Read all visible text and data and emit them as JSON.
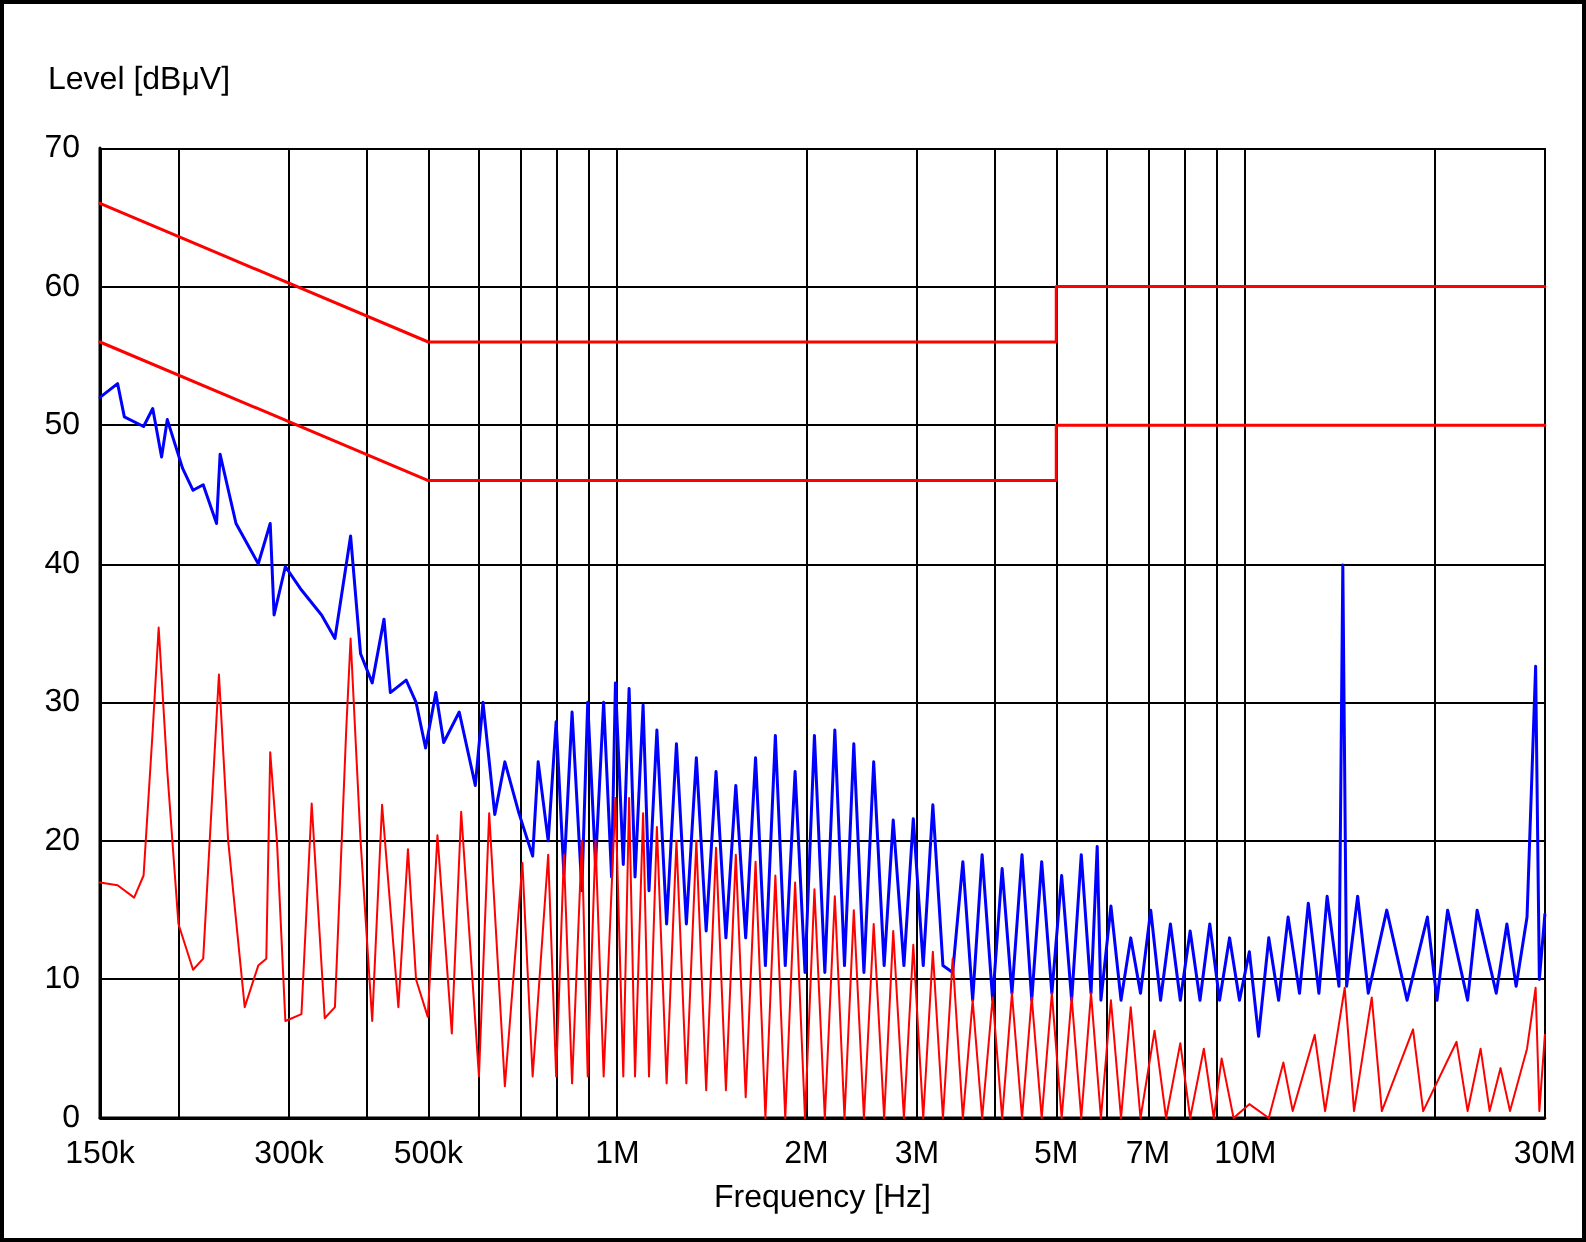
{
  "chart_data": {
    "type": "line",
    "xlabel": "Frequency [Hz]",
    "ylabel": "Level [dBμV]",
    "log": "x",
    "grid": true,
    "marker": "none",
    "line_style": "solid",
    "xlim": [
      150000,
      30000000
    ],
    "ylim": [
      0,
      70
    ],
    "xticks": [
      {
        "value": 150000,
        "label": "150k"
      },
      {
        "value": 200000,
        "label": null
      },
      {
        "value": 300000,
        "label": "300k"
      },
      {
        "value": 400000,
        "label": null
      },
      {
        "value": 500000,
        "label": "500k"
      },
      {
        "value": 600000,
        "label": null
      },
      {
        "value": 700000,
        "label": null
      },
      {
        "value": 800000,
        "label": null
      },
      {
        "value": 900000,
        "label": null
      },
      {
        "value": 1000000,
        "label": "1M"
      },
      {
        "value": 2000000,
        "label": "2M"
      },
      {
        "value": 3000000,
        "label": "3M"
      },
      {
        "value": 4000000,
        "label": null
      },
      {
        "value": 5000000,
        "label": "5M"
      },
      {
        "value": 6000000,
        "label": null
      },
      {
        "value": 7000000,
        "label": "7M"
      },
      {
        "value": 8000000,
        "label": null
      },
      {
        "value": 9000000,
        "label": null
      },
      {
        "value": 10000000,
        "label": "10M"
      },
      {
        "value": 20000000,
        "label": null
      },
      {
        "value": 30000000,
        "label": "30M"
      }
    ],
    "yticks": [
      0,
      10,
      20,
      30,
      40,
      50,
      60,
      70
    ],
    "series": [
      {
        "color": "#ff0000",
        "x": [
          150000,
          500000,
          5000000,
          5000000,
          30000000
        ],
        "values": [
          66,
          56,
          56,
          60,
          60
        ]
      },
      {
        "color": "#ff0000",
        "x": [
          150000,
          500000,
          5000000,
          5000000,
          30000000
        ],
        "values": [
          56,
          46,
          46,
          50,
          50
        ]
      },
      {
        "color": "#0000ff",
        "x": [
          150000,
          160000,
          164000,
          176000,
          182000,
          188000,
          192000,
          203000,
          211000,
          219000,
          230000,
          233000,
          247000,
          268000,
          280000,
          284000,
          296000,
          314000,
          338000,
          355000,
          376000,
          390000,
          407000,
          425000,
          435000,
          461000,
          478000,
          495000,
          514000,
          529000,
          560000,
          594000,
          611000,
          638000,
          662000,
          697000,
          733000,
          748000,
          776000,
          799000,
          822000,
          847000,
          878000,
          897000,
          923000,
          951000,
          979000,
          993000,
          1022000,
          1044000,
          1067000,
          1099000,
          1123000,
          1156000,
          1198000,
          1242000,
          1288000,
          1336000,
          1385000,
          1436000,
          1489000,
          1544000,
          1601000,
          1660000,
          1721000,
          1785000,
          1851000,
          1919000,
          1990000,
          2060000,
          2140000,
          2220000,
          2300000,
          2380000,
          2470000,
          2560000,
          2660000,
          2750000,
          2860000,
          2960000,
          3070000,
          3180000,
          3300000,
          3420000,
          3550000,
          3680000,
          3810000,
          3960000,
          4100000,
          4250000,
          4410000,
          4570000,
          4740000,
          4920000,
          5100000,
          5290000,
          5480000,
          5680000,
          5810000,
          5890000,
          6110000,
          6340000,
          6570000,
          6810000,
          7070000,
          7330000,
          7600000,
          7880000,
          8170000,
          8470000,
          8780000,
          9100000,
          9440000,
          9790000,
          10150000,
          10500000,
          10900000,
          11300000,
          11700000,
          12200000,
          12600000,
          13100000,
          13500000,
          14100000,
          14300000,
          14500000,
          15100000,
          15700000,
          16800000,
          18100000,
          19500000,
          20200000,
          21000000,
          22600000,
          23400000,
          25100000,
          26100000,
          27000000,
          28100000,
          29000000,
          29400000,
          30000000
        ],
        "values": [
          52,
          53,
          50.6,
          49.9,
          51.2,
          47.7,
          50.4,
          46.9,
          45.3,
          45.7,
          42.9,
          47.9,
          42.9,
          40,
          42.9,
          36.3,
          39.8,
          38.1,
          36.3,
          34.6,
          42,
          33.5,
          31.4,
          36,
          30.7,
          31.6,
          30,
          26.7,
          30.7,
          27.1,
          29.3,
          24,
          30,
          21.9,
          25.7,
          22,
          18.9,
          25.7,
          20,
          28.6,
          17.6,
          29.3,
          16.4,
          30,
          18.3,
          30,
          17.4,
          31.4,
          18.3,
          31,
          17.4,
          29.8,
          16.4,
          28,
          14,
          27,
          14,
          26,
          13.5,
          25,
          13,
          24,
          13,
          26,
          11,
          27.6,
          11,
          25,
          10.5,
          27.6,
          10.5,
          28,
          11,
          27,
          10.5,
          25.7,
          11,
          21.5,
          11,
          21.6,
          11,
          22.6,
          11,
          10.5,
          18.5,
          8.5,
          19,
          8.5,
          18,
          9,
          19,
          8.5,
          18.5,
          9,
          17.5,
          8.5,
          19,
          9,
          19.6,
          8.5,
          15.3,
          8.5,
          13,
          9,
          15,
          8.5,
          14,
          8.5,
          13.5,
          8.5,
          14,
          8.5,
          13,
          8.5,
          12,
          5.9,
          13,
          8.5,
          14.5,
          9,
          15.5,
          9,
          16,
          9.5,
          39.9,
          9.5,
          16,
          9,
          15,
          8.5,
          14.5,
          8.5,
          15,
          8.5,
          15,
          9,
          14,
          9.5,
          14.5,
          32.6,
          10,
          14.7
        ]
      },
      {
        "color": "#ff0000",
        "x": [
          150000,
          160000,
          170000,
          176000,
          182000,
          186000,
          192000,
          200000,
          211000,
          219000,
          232000,
          240000,
          255000,
          268000,
          276000,
          280000,
          287000,
          296000,
          314000,
          326000,
          342000,
          355000,
          370000,
          376000,
          390000,
          407000,
          422000,
          448000,
          464000,
          478000,
          499000,
          517000,
          545000,
          564000,
          602000,
          625000,
          662000,
          706000,
          733000,
          776000,
          799000,
          822000,
          847000,
          878000,
          897000,
          923000,
          951000,
          993000,
          1022000,
          1044000,
          1067000,
          1099000,
          1123000,
          1156000,
          1198000,
          1242000,
          1288000,
          1336000,
          1385000,
          1436000,
          1489000,
          1544000,
          1601000,
          1660000,
          1721000,
          1785000,
          1851000,
          1919000,
          1990000,
          2060000,
          2140000,
          2220000,
          2300000,
          2380000,
          2470000,
          2560000,
          2660000,
          2750000,
          2860000,
          2960000,
          3070000,
          3180000,
          3300000,
          3420000,
          3550000,
          3680000,
          3810000,
          3960000,
          4100000,
          4250000,
          4410000,
          4570000,
          4740000,
          4920000,
          5100000,
          5290000,
          5480000,
          5680000,
          5890000,
          6110000,
          6340000,
          6570000,
          6810000,
          7170000,
          7480000,
          7880000,
          8170000,
          8590000,
          8910000,
          9170000,
          9580000,
          10150000,
          10900000,
          11500000,
          11900000,
          12900000,
          13400000,
          14400000,
          14900000,
          15900000,
          16500000,
          18500000,
          19200000,
          21700000,
          22600000,
          23700000,
          24500000,
          25500000,
          26400000,
          28100000,
          29000000,
          29400000,
          30000000
        ],
        "values": [
          17,
          16.8,
          15.9,
          17.5,
          28,
          35.4,
          25,
          14,
          10.7,
          11.5,
          32,
          20,
          8,
          11,
          11.5,
          26.4,
          20,
          7,
          7.5,
          22.7,
          7.2,
          8,
          28,
          34.6,
          20,
          7,
          22.6,
          8,
          19.4,
          10,
          7.3,
          20.4,
          6.1,
          22.1,
          3,
          22,
          2.3,
          18.4,
          3,
          19,
          3,
          19,
          2.5,
          20,
          3,
          20,
          3,
          23.1,
          3,
          23.1,
          3,
          22,
          3,
          21,
          2.5,
          20,
          2.5,
          20,
          2,
          19.5,
          2,
          19,
          1.5,
          18.5,
          0,
          17.5,
          0,
          17,
          0,
          16.5,
          0,
          16,
          0,
          15,
          0,
          14,
          0,
          13.5,
          0,
          12.5,
          0,
          12,
          0,
          11.5,
          0,
          8.5,
          0,
          8.7,
          0,
          9,
          0,
          8.7,
          0,
          9,
          0,
          8.7,
          0,
          9,
          0,
          8.5,
          0,
          8,
          0,
          6.3,
          0,
          5.4,
          0,
          5,
          0,
          4.3,
          0,
          1,
          0,
          4,
          0.5,
          6,
          0.5,
          9.4,
          0.5,
          8.7,
          0.5,
          6.4,
          0.5,
          5.5,
          0.5,
          5,
          0.5,
          3.6,
          0.5,
          5,
          9.4,
          0.5,
          6
        ]
      }
    ]
  }
}
